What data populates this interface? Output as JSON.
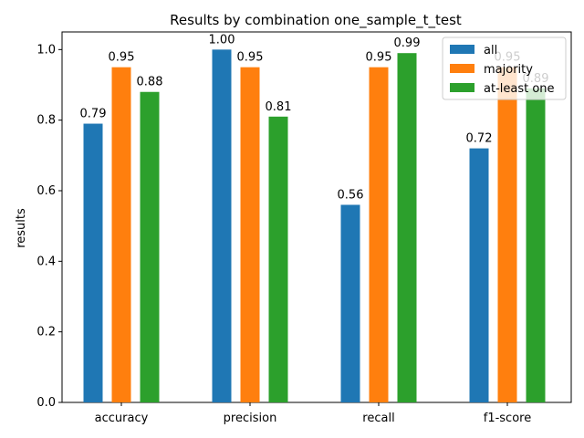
{
  "chart_data": {
    "type": "bar",
    "title": "Results by combination one_sample_t_test",
    "xlabel": "",
    "ylabel": "results",
    "categories": [
      "accuracy",
      "precision",
      "recall",
      "f1-score"
    ],
    "series": [
      {
        "name": "all",
        "color": "#1f77b4",
        "values": [
          0.79,
          1.0,
          0.56,
          0.72
        ],
        "labels": [
          "0.79",
          "1.00",
          "0.56",
          "0.72"
        ]
      },
      {
        "name": "majority",
        "color": "#ff7f0e",
        "values": [
          0.95,
          0.95,
          0.95,
          0.95
        ],
        "labels": [
          "0.95",
          "0.95",
          "0.95",
          "0.95"
        ]
      },
      {
        "name": "at-least one",
        "color": "#2ca02c",
        "values": [
          0.88,
          0.81,
          0.99,
          0.89
        ],
        "labels": [
          "0.88",
          "0.81",
          "0.99",
          "0.89"
        ]
      }
    ],
    "ylim": [
      0,
      1.05
    ],
    "yticks": [
      "0.0",
      "0.2",
      "0.4",
      "0.6",
      "0.8",
      "1.0"
    ],
    "ytick_values": [
      0,
      0.2,
      0.4,
      0.6,
      0.8,
      1.0
    ],
    "grid": false,
    "legend_position": "top-right"
  }
}
